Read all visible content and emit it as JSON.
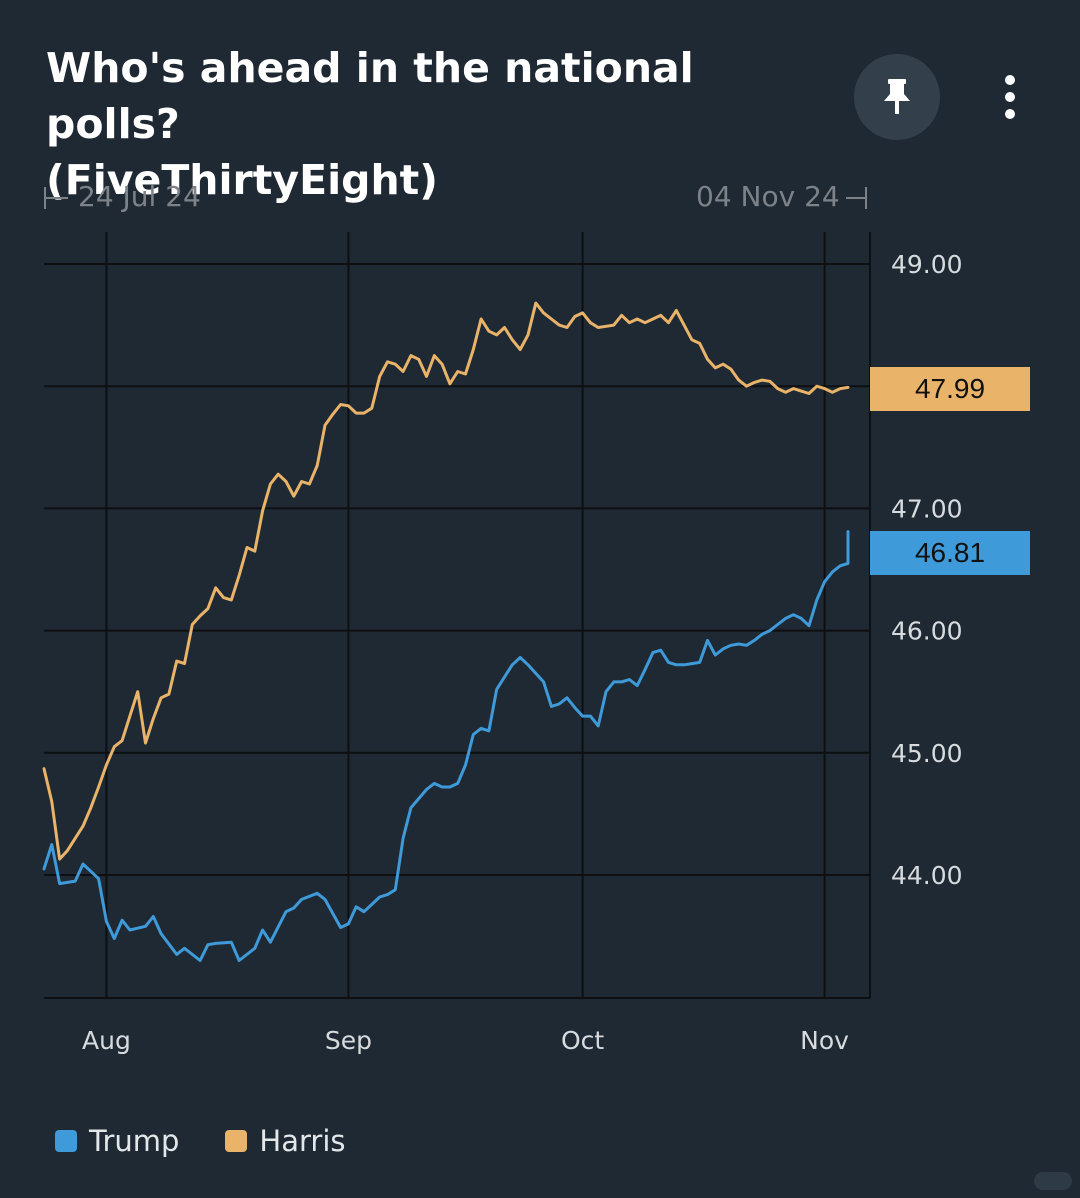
{
  "header": {
    "title_line1": "Who's ahead in the national polls?",
    "title_line2": "(FiveThirtyEight)",
    "pin_icon": "pin-icon",
    "more_icon": "more-vertical-icon"
  },
  "range": {
    "start": "24 Jul 24",
    "end": "04 Nov 24"
  },
  "colors": {
    "background": "#1f2933",
    "trump": "#3f9ad9",
    "harris": "#e9b469",
    "grid": "#0d0f11"
  },
  "chart_data": {
    "type": "line",
    "x_start": "2024-07-24",
    "x_end": "2024-11-04",
    "x_ticks": [
      {
        "label": "Aug",
        "date": "2024-08-01"
      },
      {
        "label": "Sep",
        "date": "2024-09-01"
      },
      {
        "label": "Oct",
        "date": "2024-10-01"
      },
      {
        "label": "Nov",
        "date": "2024-11-01"
      }
    ],
    "y_ticks": [
      "44.00",
      "45.00",
      "46.00",
      "47.00",
      "49.00"
    ],
    "ylim": [
      43.05,
      49.1
    ],
    "grid": true,
    "legend_position": "bottom-left",
    "series": [
      {
        "name": "Trump",
        "last_value_label": "46.81",
        "points": [
          [
            "2024-07-24",
            44.05
          ],
          [
            "2024-07-25",
            44.25
          ],
          [
            "2024-07-26",
            43.93
          ],
          [
            "2024-07-28",
            43.95
          ],
          [
            "2024-07-29",
            44.09
          ],
          [
            "2024-07-31",
            43.97
          ],
          [
            "2024-08-01",
            43.62
          ],
          [
            "2024-08-02",
            43.48
          ],
          [
            "2024-08-03",
            43.63
          ],
          [
            "2024-08-04",
            43.55
          ],
          [
            "2024-08-06",
            43.58
          ],
          [
            "2024-08-07",
            43.66
          ],
          [
            "2024-08-08",
            43.52
          ],
          [
            "2024-08-10",
            43.35
          ],
          [
            "2024-08-11",
            43.4
          ],
          [
            "2024-08-13",
            43.3
          ],
          [
            "2024-08-14",
            43.43
          ],
          [
            "2024-08-15",
            43.44
          ],
          [
            "2024-08-17",
            43.45
          ],
          [
            "2024-08-18",
            43.3
          ],
          [
            "2024-08-20",
            43.4
          ],
          [
            "2024-08-21",
            43.55
          ],
          [
            "2024-08-22",
            43.45
          ],
          [
            "2024-08-24",
            43.7
          ],
          [
            "2024-08-25",
            43.73
          ],
          [
            "2024-08-26",
            43.8
          ],
          [
            "2024-08-28",
            43.85
          ],
          [
            "2024-08-29",
            43.8
          ],
          [
            "2024-08-31",
            43.57
          ],
          [
            "2024-09-01",
            43.6
          ],
          [
            "2024-09-02",
            43.74
          ],
          [
            "2024-09-03",
            43.7
          ],
          [
            "2024-09-05",
            43.82
          ],
          [
            "2024-09-06",
            43.84
          ],
          [
            "2024-09-07",
            43.88
          ],
          [
            "2024-09-08",
            44.3
          ],
          [
            "2024-09-09",
            44.55
          ],
          [
            "2024-09-11",
            44.7
          ],
          [
            "2024-09-12",
            44.75
          ],
          [
            "2024-09-13",
            44.72
          ],
          [
            "2024-09-14",
            44.72
          ],
          [
            "2024-09-15",
            44.75
          ],
          [
            "2024-09-16",
            44.9
          ],
          [
            "2024-09-17",
            45.15
          ],
          [
            "2024-09-18",
            45.2
          ],
          [
            "2024-09-19",
            45.18
          ],
          [
            "2024-09-20",
            45.52
          ],
          [
            "2024-09-21",
            45.62
          ],
          [
            "2024-09-22",
            45.72
          ],
          [
            "2024-09-23",
            45.78
          ],
          [
            "2024-09-24",
            45.72
          ],
          [
            "2024-09-25",
            45.65
          ],
          [
            "2024-09-26",
            45.58
          ],
          [
            "2024-09-27",
            45.38
          ],
          [
            "2024-09-28",
            45.4
          ],
          [
            "2024-09-29",
            45.45
          ],
          [
            "2024-09-30",
            45.37
          ],
          [
            "2024-10-01",
            45.3
          ],
          [
            "2024-10-02",
            45.3
          ],
          [
            "2024-10-03",
            45.22
          ],
          [
            "2024-10-04",
            45.5
          ],
          [
            "2024-10-05",
            45.58
          ],
          [
            "2024-10-06",
            45.58
          ],
          [
            "2024-10-07",
            45.6
          ],
          [
            "2024-10-08",
            45.55
          ],
          [
            "2024-10-09",
            45.68
          ],
          [
            "2024-10-10",
            45.82
          ],
          [
            "2024-10-11",
            45.84
          ],
          [
            "2024-10-12",
            45.74
          ],
          [
            "2024-10-13",
            45.72
          ],
          [
            "2024-10-14",
            45.72
          ],
          [
            "2024-10-15",
            45.73
          ],
          [
            "2024-10-16",
            45.74
          ],
          [
            "2024-10-17",
            45.92
          ],
          [
            "2024-10-18",
            45.8
          ],
          [
            "2024-10-19",
            45.85
          ],
          [
            "2024-10-20",
            45.88
          ],
          [
            "2024-10-21",
            45.89
          ],
          [
            "2024-10-22",
            45.88
          ],
          [
            "2024-10-23",
            45.92
          ],
          [
            "2024-10-24",
            45.97
          ],
          [
            "2024-10-25",
            46.0
          ],
          [
            "2024-10-26",
            46.05
          ],
          [
            "2024-10-27",
            46.1
          ],
          [
            "2024-10-28",
            46.13
          ],
          [
            "2024-10-29",
            46.1
          ],
          [
            "2024-10-30",
            46.04
          ],
          [
            "2024-10-31",
            46.25
          ],
          [
            "2024-11-01",
            46.4
          ],
          [
            "2024-11-02",
            46.48
          ],
          [
            "2024-11-03",
            46.53
          ],
          [
            "2024-11-04",
            46.55
          ],
          [
            "2024-11-04",
            46.81
          ]
        ]
      },
      {
        "name": "Harris",
        "last_value_label": "47.99",
        "points": [
          [
            "2024-07-24",
            44.87
          ],
          [
            "2024-07-25",
            44.6
          ],
          [
            "2024-07-26",
            44.13
          ],
          [
            "2024-07-27",
            44.2
          ],
          [
            "2024-07-28",
            44.3
          ],
          [
            "2024-07-29",
            44.4
          ],
          [
            "2024-07-30",
            44.55
          ],
          [
            "2024-07-31",
            44.72
          ],
          [
            "2024-08-01",
            44.9
          ],
          [
            "2024-08-02",
            45.05
          ],
          [
            "2024-08-03",
            45.1
          ],
          [
            "2024-08-04",
            45.3
          ],
          [
            "2024-08-05",
            45.5
          ],
          [
            "2024-08-06",
            45.08
          ],
          [
            "2024-08-07",
            45.28
          ],
          [
            "2024-08-08",
            45.45
          ],
          [
            "2024-08-09",
            45.48
          ],
          [
            "2024-08-10",
            45.75
          ],
          [
            "2024-08-11",
            45.73
          ],
          [
            "2024-08-12",
            46.05
          ],
          [
            "2024-08-13",
            46.12
          ],
          [
            "2024-08-14",
            46.18
          ],
          [
            "2024-08-15",
            46.35
          ],
          [
            "2024-08-16",
            46.27
          ],
          [
            "2024-08-17",
            46.25
          ],
          [
            "2024-08-18",
            46.45
          ],
          [
            "2024-08-19",
            46.68
          ],
          [
            "2024-08-20",
            46.65
          ],
          [
            "2024-08-21",
            46.98
          ],
          [
            "2024-08-22",
            47.2
          ],
          [
            "2024-08-23",
            47.28
          ],
          [
            "2024-08-24",
            47.22
          ],
          [
            "2024-08-25",
            47.1
          ],
          [
            "2024-08-26",
            47.22
          ],
          [
            "2024-08-27",
            47.2
          ],
          [
            "2024-08-28",
            47.35
          ],
          [
            "2024-08-29",
            47.68
          ],
          [
            "2024-08-30",
            47.77
          ],
          [
            "2024-08-31",
            47.85
          ],
          [
            "2024-09-01",
            47.84
          ],
          [
            "2024-09-02",
            47.78
          ],
          [
            "2024-09-03",
            47.78
          ],
          [
            "2024-09-04",
            47.82
          ],
          [
            "2024-09-05",
            48.08
          ],
          [
            "2024-09-06",
            48.2
          ],
          [
            "2024-09-07",
            48.18
          ],
          [
            "2024-09-08",
            48.12
          ],
          [
            "2024-09-09",
            48.25
          ],
          [
            "2024-09-10",
            48.22
          ],
          [
            "2024-09-11",
            48.08
          ],
          [
            "2024-09-12",
            48.25
          ],
          [
            "2024-09-13",
            48.18
          ],
          [
            "2024-09-14",
            48.02
          ],
          [
            "2024-09-15",
            48.12
          ],
          [
            "2024-09-16",
            48.1
          ],
          [
            "2024-09-17",
            48.3
          ],
          [
            "2024-09-18",
            48.55
          ],
          [
            "2024-09-19",
            48.45
          ],
          [
            "2024-09-20",
            48.42
          ],
          [
            "2024-09-21",
            48.48
          ],
          [
            "2024-09-22",
            48.38
          ],
          [
            "2024-09-23",
            48.3
          ],
          [
            "2024-09-24",
            48.42
          ],
          [
            "2024-09-25",
            48.68
          ],
          [
            "2024-09-26",
            48.6
          ],
          [
            "2024-09-27",
            48.55
          ],
          [
            "2024-09-28",
            48.5
          ],
          [
            "2024-09-29",
            48.48
          ],
          [
            "2024-09-30",
            48.57
          ],
          [
            "2024-10-01",
            48.6
          ],
          [
            "2024-10-02",
            48.52
          ],
          [
            "2024-10-03",
            48.48
          ],
          [
            "2024-10-04",
            48.49
          ],
          [
            "2024-10-05",
            48.5
          ],
          [
            "2024-10-06",
            48.58
          ],
          [
            "2024-10-07",
            48.52
          ],
          [
            "2024-10-08",
            48.55
          ],
          [
            "2024-10-09",
            48.52
          ],
          [
            "2024-10-10",
            48.55
          ],
          [
            "2024-10-11",
            48.58
          ],
          [
            "2024-10-12",
            48.52
          ],
          [
            "2024-10-13",
            48.62
          ],
          [
            "2024-10-14",
            48.5
          ],
          [
            "2024-10-15",
            48.38
          ],
          [
            "2024-10-16",
            48.35
          ],
          [
            "2024-10-17",
            48.22
          ],
          [
            "2024-10-18",
            48.15
          ],
          [
            "2024-10-19",
            48.18
          ],
          [
            "2024-10-20",
            48.14
          ],
          [
            "2024-10-21",
            48.05
          ],
          [
            "2024-10-22",
            48.0
          ],
          [
            "2024-10-23",
            48.03
          ],
          [
            "2024-10-24",
            48.05
          ],
          [
            "2024-10-25",
            48.04
          ],
          [
            "2024-10-26",
            47.98
          ],
          [
            "2024-10-27",
            47.95
          ],
          [
            "2024-10-28",
            47.98
          ],
          [
            "2024-10-29",
            47.96
          ],
          [
            "2024-10-30",
            47.94
          ],
          [
            "2024-10-31",
            48.0
          ],
          [
            "2024-11-01",
            47.98
          ],
          [
            "2024-11-02",
            47.95
          ],
          [
            "2024-11-03",
            47.98
          ],
          [
            "2024-11-04",
            47.99
          ]
        ]
      }
    ]
  },
  "legend": [
    {
      "label": "Trump",
      "color": "#3f9ad9"
    },
    {
      "label": "Harris",
      "color": "#e9b469"
    }
  ]
}
